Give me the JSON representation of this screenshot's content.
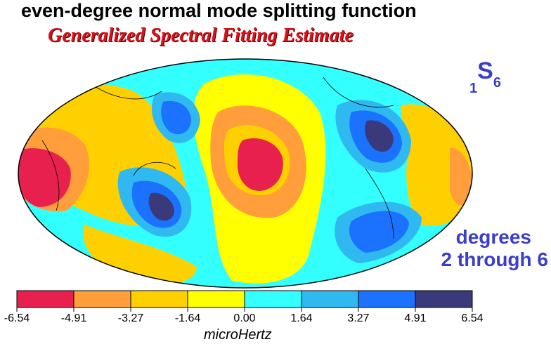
{
  "header": {
    "title": "even-degree normal mode splitting function",
    "subtitle": "Generalized Spectral Fitting Estimate"
  },
  "mode_label": {
    "prefix": "1",
    "letter": "S",
    "suffix": "6"
  },
  "degrees_label": {
    "line1": "degrees",
    "line2": "2 through 6"
  },
  "map": {
    "projection": "hammer-aitoff",
    "palette": [
      "#e8204e",
      "#ff9e3a",
      "#ffd000",
      "#ffff00",
      "#33ffff",
      "#30b8f0",
      "#1a72ff",
      "#3a3a7a"
    ]
  },
  "colorbar": {
    "ticks": [
      "-6.54",
      "-4.91",
      "-3.27",
      "-1.64",
      "0.00",
      "1.64",
      "3.27",
      "4.91",
      "6.54"
    ],
    "units": "microHertz"
  }
}
